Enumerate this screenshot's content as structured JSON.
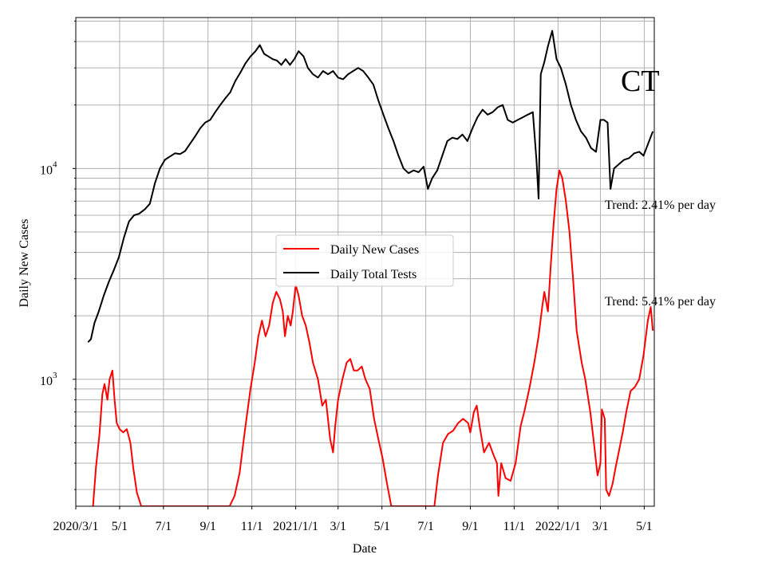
{
  "chart_data": {
    "type": "line",
    "title": "",
    "state_label": "CT",
    "xlabel": "Date",
    "ylabel": "Daily New Cases",
    "yscale": "log",
    "ylim": [
      250,
      52000
    ],
    "y_tick_labels": [
      {
        "value": 1000,
        "base": "10",
        "exp": "3"
      },
      {
        "value": 10000,
        "base": "10",
        "exp": "4"
      }
    ],
    "x_tick_labels": [
      "2020/3/1",
      "5/1",
      "7/1",
      "9/1",
      "11/1",
      "2021/1/1",
      "3/1",
      "5/1",
      "7/1",
      "9/1",
      "11/1",
      "2022/1/1",
      "3/1",
      "5/1"
    ],
    "x_tick_dates": [
      "2020-03-01",
      "2020-05-01",
      "2020-07-01",
      "2020-09-01",
      "2020-11-01",
      "2021-01-01",
      "2021-03-01",
      "2021-05-01",
      "2021-07-01",
      "2021-09-01",
      "2021-11-01",
      "2022-01-01",
      "2022-03-01",
      "2022-05-01"
    ],
    "xlim": [
      "2020-03-01",
      "2022-05-15"
    ],
    "grid": true,
    "legend_position": "center",
    "series": [
      {
        "name": "Daily New Cases",
        "color": "#ff0000",
        "points": [
          [
            "2020-03-25",
            250
          ],
          [
            "2020-03-29",
            380
          ],
          [
            "2020-04-03",
            550
          ],
          [
            "2020-04-07",
            850
          ],
          [
            "2020-04-10",
            950
          ],
          [
            "2020-04-14",
            800
          ],
          [
            "2020-04-17",
            1000
          ],
          [
            "2020-04-21",
            1100
          ],
          [
            "2020-04-24",
            800
          ],
          [
            "2020-04-27",
            620
          ],
          [
            "2020-05-01",
            580
          ],
          [
            "2020-05-06",
            560
          ],
          [
            "2020-05-11",
            580
          ],
          [
            "2020-05-16",
            500
          ],
          [
            "2020-05-20",
            380
          ],
          [
            "2020-05-25",
            290
          ],
          [
            "2020-05-31",
            250
          ],
          [
            "2020-10-01",
            250
          ],
          [
            "2020-10-08",
            280
          ],
          [
            "2020-10-15",
            360
          ],
          [
            "2020-10-22",
            560
          ],
          [
            "2020-10-30",
            900
          ],
          [
            "2020-11-05",
            1200
          ],
          [
            "2020-11-10",
            1600
          ],
          [
            "2020-11-15",
            1900
          ],
          [
            "2020-11-20",
            1600
          ],
          [
            "2020-11-25",
            1800
          ],
          [
            "2020-11-30",
            2300
          ],
          [
            "2020-12-05",
            2600
          ],
          [
            "2020-12-10",
            2400
          ],
          [
            "2020-12-14",
            2100
          ],
          [
            "2020-12-17",
            1600
          ],
          [
            "2020-12-21",
            2000
          ],
          [
            "2020-12-25",
            1800
          ],
          [
            "2020-12-28",
            2100
          ],
          [
            "2021-01-01",
            2800
          ],
          [
            "2021-01-05",
            2500
          ],
          [
            "2021-01-10",
            2000
          ],
          [
            "2021-01-15",
            1800
          ],
          [
            "2021-01-20",
            1500
          ],
          [
            "2021-01-25",
            1200
          ],
          [
            "2021-02-01",
            1000
          ],
          [
            "2021-02-07",
            750
          ],
          [
            "2021-02-12",
            800
          ],
          [
            "2021-02-18",
            520
          ],
          [
            "2021-02-22",
            450
          ],
          [
            "2021-02-25",
            600
          ],
          [
            "2021-03-01",
            800
          ],
          [
            "2021-03-07",
            1000
          ],
          [
            "2021-03-13",
            1200
          ],
          [
            "2021-03-18",
            1250
          ],
          [
            "2021-03-23",
            1100
          ],
          [
            "2021-03-28",
            1100
          ],
          [
            "2021-04-03",
            1150
          ],
          [
            "2021-04-08",
            1000
          ],
          [
            "2021-04-14",
            900
          ],
          [
            "2021-04-20",
            650
          ],
          [
            "2021-04-26",
            520
          ],
          [
            "2021-05-02",
            420
          ],
          [
            "2021-05-08",
            320
          ],
          [
            "2021-05-14",
            250
          ],
          [
            "2021-07-13",
            250
          ],
          [
            "2021-07-18",
            350
          ],
          [
            "2021-07-25",
            500
          ],
          [
            "2021-08-01",
            550
          ],
          [
            "2021-08-08",
            570
          ],
          [
            "2021-08-15",
            620
          ],
          [
            "2021-08-22",
            650
          ],
          [
            "2021-08-29",
            620
          ],
          [
            "2021-09-01",
            560
          ],
          [
            "2021-09-06",
            700
          ],
          [
            "2021-09-10",
            750
          ],
          [
            "2021-09-14",
            600
          ],
          [
            "2021-09-20",
            450
          ],
          [
            "2021-09-27",
            500
          ],
          [
            "2021-10-03",
            440
          ],
          [
            "2021-10-08",
            400
          ],
          [
            "2021-10-10",
            280
          ],
          [
            "2021-10-14",
            400
          ],
          [
            "2021-10-20",
            340
          ],
          [
            "2021-10-27",
            330
          ],
          [
            "2021-11-03",
            400
          ],
          [
            "2021-11-10",
            600
          ],
          [
            "2021-11-15",
            700
          ],
          [
            "2021-11-22",
            900
          ],
          [
            "2021-11-29",
            1200
          ],
          [
            "2021-12-05",
            1600
          ],
          [
            "2021-12-10",
            2200
          ],
          [
            "2021-12-13",
            2600
          ],
          [
            "2021-12-18",
            2100
          ],
          [
            "2021-12-22",
            3500
          ],
          [
            "2021-12-26",
            5500
          ],
          [
            "2021-12-30",
            8000
          ],
          [
            "2022-01-03",
            9800
          ],
          [
            "2022-01-07",
            9000
          ],
          [
            "2022-01-12",
            7000
          ],
          [
            "2022-01-17",
            5000
          ],
          [
            "2022-01-22",
            3000
          ],
          [
            "2022-01-27",
            1700
          ],
          [
            "2022-02-03",
            1200
          ],
          [
            "2022-02-08",
            1000
          ],
          [
            "2022-02-15",
            700
          ],
          [
            "2022-02-20",
            500
          ],
          [
            "2022-02-25",
            350
          ],
          [
            "2022-03-01",
            400
          ],
          [
            "2022-03-03",
            720
          ],
          [
            "2022-03-07",
            650
          ],
          [
            "2022-03-09",
            300
          ],
          [
            "2022-03-13",
            280
          ],
          [
            "2022-03-18",
            320
          ],
          [
            "2022-03-22",
            380
          ],
          [
            "2022-03-27",
            460
          ],
          [
            "2022-04-01",
            560
          ],
          [
            "2022-04-06",
            700
          ],
          [
            "2022-04-12",
            880
          ],
          [
            "2022-04-18",
            920
          ],
          [
            "2022-04-24",
            1000
          ],
          [
            "2022-04-30",
            1300
          ],
          [
            "2022-05-06",
            1900
          ],
          [
            "2022-05-10",
            2200
          ],
          [
            "2022-05-13",
            1700
          ]
        ]
      },
      {
        "name": "Daily Total Tests",
        "color": "#000000",
        "points": [
          [
            "2020-03-18",
            1500
          ],
          [
            "2020-03-22",
            1550
          ],
          [
            "2020-03-27",
            1850
          ],
          [
            "2020-04-02",
            2100
          ],
          [
            "2020-04-09",
            2500
          ],
          [
            "2020-04-16",
            2900
          ],
          [
            "2020-04-23",
            3300
          ],
          [
            "2020-04-30",
            3800
          ],
          [
            "2020-05-07",
            4700
          ],
          [
            "2020-05-14",
            5600
          ],
          [
            "2020-05-21",
            6000
          ],
          [
            "2020-05-28",
            6100
          ],
          [
            "2020-06-05",
            6400
          ],
          [
            "2020-06-12",
            6800
          ],
          [
            "2020-06-19",
            8500
          ],
          [
            "2020-06-26",
            10000
          ],
          [
            "2020-07-03",
            11000
          ],
          [
            "2020-07-10",
            11400
          ],
          [
            "2020-07-17",
            11800
          ],
          [
            "2020-07-24",
            11700
          ],
          [
            "2020-07-31",
            12100
          ],
          [
            "2020-08-07",
            13100
          ],
          [
            "2020-08-14",
            14200
          ],
          [
            "2020-08-21",
            15500
          ],
          [
            "2020-08-28",
            16500
          ],
          [
            "2020-09-04",
            17000
          ],
          [
            "2020-09-11",
            18500
          ],
          [
            "2020-09-18",
            20000
          ],
          [
            "2020-09-25",
            21500
          ],
          [
            "2020-10-02",
            23000
          ],
          [
            "2020-10-09",
            26000
          ],
          [
            "2020-10-16",
            28500
          ],
          [
            "2020-10-23",
            31500
          ],
          [
            "2020-10-30",
            34000
          ],
          [
            "2020-11-06",
            36000
          ],
          [
            "2020-11-12",
            38500
          ],
          [
            "2020-11-18",
            35000
          ],
          [
            "2020-11-24",
            34000
          ],
          [
            "2020-11-30",
            33000
          ],
          [
            "2020-12-06",
            32500
          ],
          [
            "2020-12-12",
            31000
          ],
          [
            "2020-12-18",
            33000
          ],
          [
            "2020-12-24",
            31000
          ],
          [
            "2020-12-30",
            33000
          ],
          [
            "2021-01-05",
            36000
          ],
          [
            "2021-01-12",
            34000
          ],
          [
            "2021-01-18",
            30000
          ],
          [
            "2021-01-25",
            28000
          ],
          [
            "2021-02-01",
            27000
          ],
          [
            "2021-02-08",
            29000
          ],
          [
            "2021-02-15",
            28000
          ],
          [
            "2021-02-22",
            29000
          ],
          [
            "2021-03-01",
            27000
          ],
          [
            "2021-03-08",
            26500
          ],
          [
            "2021-03-15",
            28000
          ],
          [
            "2021-03-22",
            29000
          ],
          [
            "2021-03-29",
            30000
          ],
          [
            "2021-04-05",
            29000
          ],
          [
            "2021-04-12",
            27000
          ],
          [
            "2021-04-19",
            25000
          ],
          [
            "2021-04-26",
            21000
          ],
          [
            "2021-05-03",
            18000
          ],
          [
            "2021-05-10",
            15500
          ],
          [
            "2021-05-17",
            13500
          ],
          [
            "2021-05-24",
            11500
          ],
          [
            "2021-05-31",
            10000
          ],
          [
            "2021-06-07",
            9500
          ],
          [
            "2021-06-14",
            9800
          ],
          [
            "2021-06-21",
            9600
          ],
          [
            "2021-06-28",
            10200
          ],
          [
            "2021-07-04",
            8000
          ],
          [
            "2021-07-10",
            9000
          ],
          [
            "2021-07-17",
            9800
          ],
          [
            "2021-07-24",
            11500
          ],
          [
            "2021-07-31",
            13500
          ],
          [
            "2021-08-07",
            14000
          ],
          [
            "2021-08-14",
            13800
          ],
          [
            "2021-08-21",
            14500
          ],
          [
            "2021-08-28",
            13500
          ],
          [
            "2021-09-04",
            15500
          ],
          [
            "2021-09-11",
            17500
          ],
          [
            "2021-09-18",
            19000
          ],
          [
            "2021-09-25",
            18000
          ],
          [
            "2021-10-02",
            18500
          ],
          [
            "2021-10-09",
            19500
          ],
          [
            "2021-10-16",
            20000
          ],
          [
            "2021-10-23",
            17000
          ],
          [
            "2021-10-30",
            16500
          ],
          [
            "2021-11-06",
            17000
          ],
          [
            "2021-11-13",
            17500
          ],
          [
            "2021-11-20",
            18000
          ],
          [
            "2021-11-27",
            18500
          ],
          [
            "2021-12-02",
            11000
          ],
          [
            "2021-12-05",
            7200
          ],
          [
            "2021-12-08",
            28000
          ],
          [
            "2021-12-13",
            32000
          ],
          [
            "2021-12-18",
            38000
          ],
          [
            "2021-12-24",
            45000
          ],
          [
            "2021-12-30",
            33000
          ],
          [
            "2022-01-05",
            30000
          ],
          [
            "2022-01-12",
            25000
          ],
          [
            "2022-01-19",
            20000
          ],
          [
            "2022-01-26",
            17000
          ],
          [
            "2022-02-02",
            15000
          ],
          [
            "2022-02-09",
            14000
          ],
          [
            "2022-02-16",
            12500
          ],
          [
            "2022-02-23",
            12000
          ],
          [
            "2022-03-01",
            17000
          ],
          [
            "2022-03-06",
            17000
          ],
          [
            "2022-03-11",
            16500
          ],
          [
            "2022-03-15",
            8000
          ],
          [
            "2022-03-20",
            10000
          ],
          [
            "2022-03-27",
            10500
          ],
          [
            "2022-04-03",
            11000
          ],
          [
            "2022-04-10",
            11200
          ],
          [
            "2022-04-17",
            11800
          ],
          [
            "2022-04-24",
            12000
          ],
          [
            "2022-04-30",
            11500
          ],
          [
            "2022-05-06",
            13000
          ],
          [
            "2022-05-13",
            15000
          ]
        ]
      }
    ],
    "annotations": [
      {
        "text": "Trend: 2.41% per day",
        "position": "right, below tests line"
      },
      {
        "text": "Trend: 5.41% per day",
        "position": "right, above cases line"
      }
    ]
  }
}
